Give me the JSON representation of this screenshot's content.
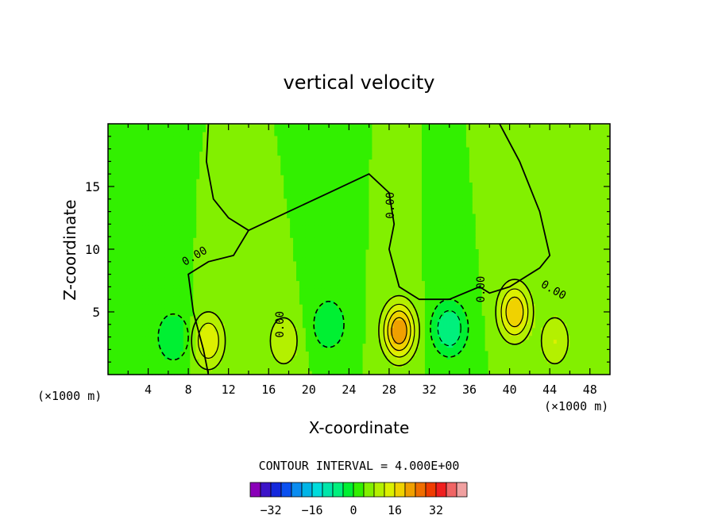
{
  "chart_data": {
    "type": "contour",
    "title": "vertical velocity",
    "xlabel": "X-coordinate",
    "ylabel": "Z-coordinate",
    "x_unit": "(×1000 m)",
    "xlim": [
      0,
      50
    ],
    "ylim": [
      0,
      20
    ],
    "x_ticks": [
      4,
      8,
      12,
      16,
      20,
      24,
      28,
      32,
      36,
      40,
      44,
      48
    ],
    "y_ticks": [
      5,
      10,
      15
    ],
    "contour_interval_label": "CONTOUR INTERVAL = 4.000E+00",
    "contour_interval": 4,
    "contour_labels": [
      "0.00",
      "0.00",
      "0.00",
      "0.00",
      "0.00"
    ],
    "colorbar": {
      "levels": [
        -36,
        -32,
        -28,
        -24,
        -20,
        -16,
        -12,
        -8,
        -4,
        0,
        4,
        8,
        12,
        16,
        20,
        24,
        28,
        32,
        36
      ],
      "tick_labels": [
        "-32",
        "-16",
        "0",
        "16",
        "32"
      ],
      "tick_values": [
        -32,
        -16,
        0,
        16,
        32
      ],
      "colors": [
        "#8a00b8",
        "#3c14c8",
        "#1428dc",
        "#0a50f0",
        "#0a8cf0",
        "#00b4e6",
        "#00dcdc",
        "#00e6aa",
        "#00f07d",
        "#00f032",
        "#32f000",
        "#82f000",
        "#b4f000",
        "#dcf000",
        "#f0d200",
        "#f0a000",
        "#f06e00",
        "#f03c00",
        "#f01e1e",
        "#f06464",
        "#f0a0a0"
      ]
    },
    "features": [
      {
        "kind": "updraft",
        "x": 29,
        "z": 3.5,
        "peak": 20
      },
      {
        "kind": "updraft",
        "x": 40.5,
        "z": 5,
        "peak": 16
      },
      {
        "kind": "updraft",
        "x": 10,
        "z": 2.7,
        "peak": 12
      },
      {
        "kind": "updraft",
        "x": 44.5,
        "z": 2.7,
        "peak": 8
      },
      {
        "kind": "updraft",
        "x": 17.5,
        "z": 2.7,
        "peak": 8
      },
      {
        "kind": "downdraft",
        "x": 34,
        "z": 3.7,
        "peak": -12
      },
      {
        "kind": "downdraft",
        "x": 22,
        "z": 4,
        "peak": -8
      },
      {
        "kind": "downdraft",
        "x": 6.5,
        "z": 3,
        "peak": -8
      },
      {
        "kind": "downdraft",
        "x": 1.5,
        "z": 6,
        "peak": -4
      }
    ]
  }
}
